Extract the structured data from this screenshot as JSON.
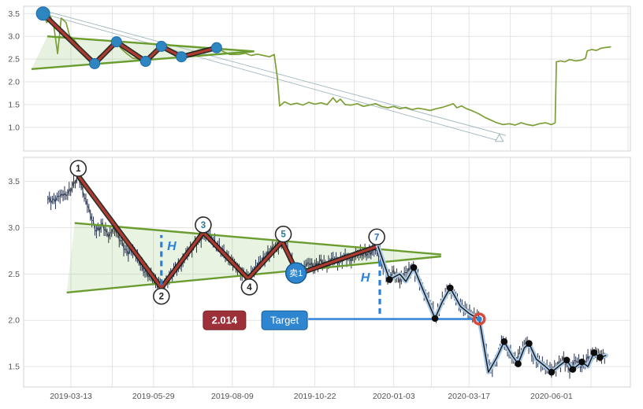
{
  "colors": {
    "grid": "#e3e3e3",
    "panel_border": "#cfd4d9",
    "tick_text": "#555555",
    "background": "#ffffff"
  },
  "chart_data": [
    {
      "type": "line",
      "title": "",
      "ylim": [
        0.48,
        3.66
      ],
      "yticks": [
        3.5,
        3.0,
        2.5,
        2.0,
        1.5,
        1.0
      ],
      "xlim": [
        0,
        100
      ],
      "xgrid": [
        7.8,
        14.6,
        21.4,
        27.9,
        34.4,
        41.2,
        48.0,
        54.5,
        61.0,
        67.2,
        73.4,
        80.2,
        87.0,
        93.5,
        99.6
      ],
      "price_color": "#7d9f35",
      "price": [
        [
          3.2,
          3.5
        ],
        [
          3.8,
          3.3
        ],
        [
          4.4,
          3.45
        ],
        [
          5.0,
          3.2
        ],
        [
          5.6,
          2.62
        ],
        [
          6.2,
          3.4
        ],
        [
          7.0,
          3.3
        ],
        [
          7.6,
          3.0
        ],
        [
          8.2,
          2.95
        ],
        [
          9.0,
          2.8
        ],
        [
          9.8,
          2.62
        ],
        [
          10.6,
          2.5
        ],
        [
          11.7,
          2.4
        ],
        [
          12.4,
          2.56
        ],
        [
          13.2,
          2.62
        ],
        [
          14.2,
          2.76
        ],
        [
          15.3,
          2.88
        ],
        [
          16.0,
          2.74
        ],
        [
          17.0,
          2.62
        ],
        [
          18.0,
          2.52
        ],
        [
          19.0,
          2.5
        ],
        [
          20.1,
          2.45
        ],
        [
          21.0,
          2.56
        ],
        [
          22.0,
          2.7
        ],
        [
          22.7,
          2.78
        ],
        [
          23.5,
          2.7
        ],
        [
          24.5,
          2.62
        ],
        [
          25.2,
          2.58
        ],
        [
          26.0,
          2.55
        ],
        [
          27.0,
          2.6
        ],
        [
          28.0,
          2.66
        ],
        [
          29.0,
          2.7
        ],
        [
          30.5,
          2.73
        ],
        [
          31.8,
          2.75
        ],
        [
          33.0,
          2.66
        ],
        [
          34.0,
          2.6
        ],
        [
          35.5,
          2.6
        ],
        [
          36.5,
          2.63
        ],
        [
          37.5,
          2.58
        ],
        [
          38.5,
          2.61
        ],
        [
          39.5,
          2.58
        ],
        [
          40.5,
          2.55
        ],
        [
          41.3,
          2.6
        ],
        [
          41.8,
          2.1
        ],
        [
          42.2,
          1.47
        ],
        [
          43.0,
          1.56
        ],
        [
          44.0,
          1.5
        ],
        [
          45.0,
          1.53
        ],
        [
          46.0,
          1.49
        ],
        [
          47.0,
          1.55
        ],
        [
          48.0,
          1.51
        ],
        [
          49.0,
          1.54
        ],
        [
          50.0,
          1.5
        ],
        [
          51.0,
          1.65
        ],
        [
          51.6,
          1.55
        ],
        [
          52.2,
          1.62
        ],
        [
          53.0,
          1.5
        ],
        [
          54.0,
          1.49
        ],
        [
          55.0,
          1.52
        ],
        [
          56.0,
          1.46
        ],
        [
          57.0,
          1.49
        ],
        [
          58.0,
          1.52
        ],
        [
          59.0,
          1.46
        ],
        [
          60.0,
          1.43
        ],
        [
          61.0,
          1.46
        ],
        [
          62.0,
          1.41
        ],
        [
          63.0,
          1.44
        ],
        [
          64.0,
          1.39
        ],
        [
          65.0,
          1.42
        ],
        [
          66.0,
          1.4
        ],
        [
          67.0,
          1.37
        ],
        [
          68.0,
          1.41
        ],
        [
          69.0,
          1.44
        ],
        [
          70.0,
          1.48
        ],
        [
          70.8,
          1.52
        ],
        [
          71.4,
          1.43
        ],
        [
          72.2,
          1.47
        ],
        [
          73.0,
          1.41
        ],
        [
          74.0,
          1.36
        ],
        [
          75.0,
          1.3
        ],
        [
          76.0,
          1.22
        ],
        [
          77.0,
          1.16
        ],
        [
          78.0,
          1.1
        ],
        [
          79.0,
          1.06
        ],
        [
          80.0,
          1.08
        ],
        [
          81.0,
          1.05
        ],
        [
          82.0,
          1.1
        ],
        [
          83.0,
          1.06
        ],
        [
          84.0,
          1.04
        ],
        [
          85.0,
          1.08
        ],
        [
          86.0,
          1.1
        ],
        [
          87.0,
          1.06
        ],
        [
          87.6,
          1.1
        ],
        [
          87.8,
          2.44
        ],
        [
          88.5,
          2.46
        ],
        [
          89.2,
          2.44
        ],
        [
          90.0,
          2.49
        ],
        [
          91.0,
          2.46
        ],
        [
          92.0,
          2.48
        ],
        [
          92.6,
          2.52
        ],
        [
          92.9,
          2.68
        ],
        [
          93.6,
          2.71
        ],
        [
          94.4,
          2.69
        ],
        [
          95.2,
          2.74
        ],
        [
          96.2,
          2.76
        ],
        [
          96.8,
          2.77
        ]
      ],
      "zigzag": {
        "points": [
          [
            3.2,
            3.5
          ],
          [
            11.7,
            2.4
          ],
          [
            15.3,
            2.88
          ],
          [
            20.1,
            2.45
          ],
          [
            22.7,
            2.78
          ],
          [
            26.0,
            2.55
          ],
          [
            31.8,
            2.75
          ]
        ],
        "line_color": "#b03a2e",
        "edge_color": "#1a1a1a",
        "marker_color": "#2e86c1"
      },
      "triangle": {
        "upper": [
          [
            3.9,
            3.0
          ],
          [
            38.0,
            2.67
          ]
        ],
        "lower": [
          [
            1.3,
            2.28
          ],
          [
            38.0,
            2.67
          ]
        ],
        "line_color": "#6a9c2f",
        "fill": "rgba(140,195,110,0.22)"
      },
      "channel": {
        "color": "#9fb6bf",
        "lines": [
          [
            [
              3.2,
              3.5
            ],
            [
              77.9,
              0.72
            ]
          ],
          [
            [
              3.5,
              3.56
            ],
            [
              79.5,
              0.82
            ]
          ]
        ],
        "end_marker": [
          78.4,
          0.76
        ]
      }
    },
    {
      "type": "candlestick",
      "ylim": [
        1.28,
        3.76
      ],
      "yticks": [
        3.5,
        3.0,
        2.5,
        2.0,
        1.5
      ],
      "xlim": [
        0,
        100
      ],
      "xticks": {
        "pos": [
          7.8,
          21.4,
          34.4,
          48.0,
          61.0,
          73.4,
          87.0
        ],
        "labels": [
          "2019-03-13",
          "2019-05-29",
          "2019-08-09",
          "2019-10-22",
          "2020-01-03",
          "2020-03-17",
          "2020-06-01"
        ]
      },
      "xgrid_extra": [
        14.6,
        27.9,
        41.2,
        54.5,
        67.2,
        80.2,
        93.5
      ],
      "candles": {
        "x_start": 4,
        "x_step": 1,
        "color": "#25304a",
        "values": [
          3.3,
          3.28,
          3.36,
          3.33,
          3.44,
          3.55,
          3.35,
          3.12,
          2.96,
          3.02,
          2.92,
          2.97,
          2.86,
          2.72,
          2.77,
          2.62,
          2.52,
          2.46,
          2.41,
          2.35,
          2.46,
          2.55,
          2.61,
          2.71,
          2.8,
          2.86,
          2.95,
          2.86,
          2.8,
          2.71,
          2.66,
          2.56,
          2.5,
          2.45,
          2.55,
          2.61,
          2.7,
          2.76,
          2.81,
          2.85,
          2.66,
          2.5,
          2.56,
          2.6,
          2.58,
          2.63,
          2.6,
          2.65,
          2.63,
          2.68,
          2.66,
          2.7,
          2.72,
          2.71,
          2.78,
          2.6,
          2.46,
          2.51,
          2.43,
          2.5,
          2.57,
          2.46,
          2.31,
          2.16,
          2.03,
          2.2,
          2.35,
          2.26,
          2.16,
          2.1,
          2.06,
          2.01,
          1.72,
          1.45,
          1.6,
          1.77,
          1.65,
          1.55,
          1.68,
          1.75,
          1.6,
          1.54,
          1.5,
          1.44,
          1.51,
          1.57,
          1.47,
          1.55,
          1.5,
          1.58,
          1.65,
          1.6,
          1.62
        ]
      },
      "triangle": {
        "upper": [
          [
            8.4,
            3.05
          ],
          [
            68.8,
            2.71
          ]
        ],
        "lower": [
          [
            7.1,
            2.3
          ],
          [
            68.8,
            2.69
          ]
        ],
        "line_color": "#6a9c2f",
        "fill": "rgba(140,195,110,0.20)"
      },
      "zigzag": {
        "points": [
          [
            9.1,
            3.55
          ],
          [
            22.7,
            2.35
          ],
          [
            29.6,
            2.95
          ],
          [
            37.0,
            2.45
          ],
          [
            42.6,
            2.85
          ],
          [
            45.2,
            2.5
          ],
          [
            58.4,
            2.8
          ]
        ],
        "line_color": "#b03a2e",
        "edge_color": "#1a1a1a"
      },
      "wave_labels": [
        {
          "n": "1",
          "x": 9.0,
          "y": 3.64,
          "color": "#222222"
        },
        {
          "n": "2",
          "x": 22.7,
          "y": 2.26,
          "color": "#222222"
        },
        {
          "n": "3",
          "x": 29.6,
          "y": 3.03,
          "color": "#1f7a9c"
        },
        {
          "n": "4",
          "x": 37.2,
          "y": 2.36,
          "color": "#222222"
        },
        {
          "n": "5",
          "x": 42.8,
          "y": 2.93,
          "color": "#1f7a9c"
        },
        {
          "n": "7",
          "x": 58.2,
          "y": 2.9,
          "color": "#2471c8"
        }
      ],
      "post_line": {
        "line_color": "#a9c9e6",
        "core_color": "#141414",
        "points": [
          [
            58.4,
            2.8
          ],
          [
            60.3,
            2.44
          ],
          [
            62.0,
            2.5
          ],
          [
            63.0,
            2.42
          ],
          [
            64.3,
            2.57
          ],
          [
            66.0,
            2.3
          ],
          [
            67.8,
            2.02
          ],
          [
            69.0,
            2.2
          ],
          [
            70.3,
            2.35
          ],
          [
            72.0,
            2.15
          ],
          [
            73.5,
            2.07
          ],
          [
            75.1,
            2.01
          ],
          [
            76.6,
            1.44
          ],
          [
            78.0,
            1.6
          ],
          [
            79.2,
            1.77
          ],
          [
            80.5,
            1.62
          ],
          [
            81.5,
            1.53
          ],
          [
            82.5,
            1.7
          ],
          [
            83.3,
            1.75
          ],
          [
            84.5,
            1.58
          ],
          [
            86.0,
            1.5
          ],
          [
            87.0,
            1.44
          ],
          [
            88.5,
            1.52
          ],
          [
            89.5,
            1.57
          ],
          [
            90.5,
            1.47
          ],
          [
            92.0,
            1.55
          ],
          [
            93.0,
            1.5
          ],
          [
            94.0,
            1.65
          ],
          [
            95.0,
            1.6
          ],
          [
            96.0,
            1.62
          ]
        ],
        "dots": [
          [
            45.2,
            2.48
          ],
          [
            60.3,
            2.44
          ],
          [
            64.3,
            2.57
          ],
          [
            67.8,
            2.02
          ],
          [
            70.3,
            2.35
          ],
          [
            79.2,
            1.77
          ],
          [
            81.5,
            1.53
          ],
          [
            83.3,
            1.75
          ],
          [
            87.0,
            1.44
          ],
          [
            89.5,
            1.57
          ],
          [
            90.5,
            1.47
          ],
          [
            92.0,
            1.55
          ],
          [
            94.0,
            1.65
          ],
          [
            95.0,
            1.6
          ]
        ]
      },
      "h_marks": [
        {
          "label": "H",
          "x": 22.7,
          "y1": 2.38,
          "y2": 2.92,
          "lx": 24.4,
          "ly": 2.8
        },
        {
          "label": "H",
          "x": 58.7,
          "y1": 2.64,
          "y2": 2.03,
          "lx": 56.3,
          "ly": 2.46
        }
      ],
      "h_color": "#2980d9",
      "target": {
        "price_label": "2.014",
        "badge_label": "Target",
        "line_y": 2.014,
        "line_x1": 46.9,
        "line_x2": 75.1,
        "price_badge_x": 33.1,
        "badge_x": 43.0,
        "badge_y": 2.0,
        "marker": [
          75.1,
          2.014
        ],
        "line_color": "#2980d9",
        "price_badge_color": "#9e3039",
        "price_badge_border": "#7c2228",
        "badge_color": "#2e86d1",
        "badge_border": "#1b5e93",
        "marker_ring": "#d84a3b",
        "marker_fill": "#2e86d1"
      },
      "sell_badge": {
        "text": "卖1",
        "x": 44.9,
        "y": 2.51,
        "fill": "#2e86d1",
        "ring": "#155a8a"
      }
    }
  ]
}
